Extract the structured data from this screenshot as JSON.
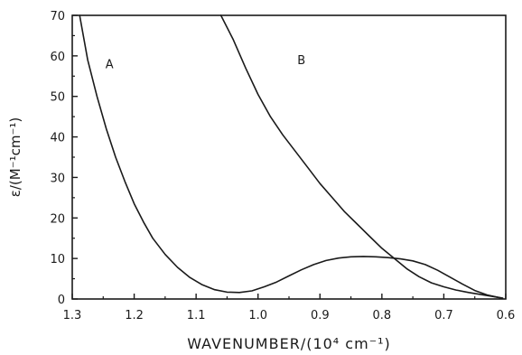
{
  "chart_data": {
    "type": "line",
    "xlabel": "WAVENUMBER/(10⁴ cm⁻¹)",
    "ylabel": "ε/(M⁻¹cm⁻¹)",
    "xlim": [
      1.3,
      0.6
    ],
    "ylim": [
      0,
      70
    ],
    "x_reversed": true,
    "x_ticks": [
      "1.3",
      "1.2",
      "1.1",
      "1.0",
      "0.9",
      "0.8",
      "0.7",
      "0.6"
    ],
    "y_ticks": [
      "0",
      "10",
      "20",
      "30",
      "40",
      "50",
      "60",
      "70"
    ],
    "grid": false,
    "series": [
      {
        "name": "A",
        "x": [
          1.288,
          1.275,
          1.26,
          1.245,
          1.23,
          1.215,
          1.2,
          1.185,
          1.17,
          1.15,
          1.13,
          1.11,
          1.09,
          1.07,
          1.05,
          1.03,
          1.01,
          0.99,
          0.97,
          0.95,
          0.93,
          0.91,
          0.89,
          0.87,
          0.85,
          0.83,
          0.81,
          0.79,
          0.77,
          0.75,
          0.73,
          0.71,
          0.69,
          0.67,
          0.65,
          0.63,
          0.615,
          0.605
        ],
        "y": [
          70,
          59,
          50,
          42,
          35,
          29,
          23.5,
          19,
          15,
          11,
          7.8,
          5.3,
          3.5,
          2.3,
          1.7,
          1.6,
          2.0,
          3.0,
          4.2,
          5.7,
          7.2,
          8.5,
          9.5,
          10.1,
          10.4,
          10.5,
          10.4,
          10.2,
          9.9,
          9.4,
          8.5,
          7.1,
          5.4,
          3.7,
          2.1,
          1.0,
          0.5,
          0.2
        ]
      },
      {
        "name": "B",
        "x": [
          1.06,
          1.04,
          1.02,
          1.0,
          0.98,
          0.96,
          0.94,
          0.92,
          0.9,
          0.88,
          0.86,
          0.84,
          0.82,
          0.8,
          0.78,
          0.76,
          0.74,
          0.72,
          0.7,
          0.68,
          0.66,
          0.64,
          0.62,
          0.605
        ],
        "y": [
          70,
          64,
          57,
          50.5,
          45,
          40.5,
          36.5,
          32.5,
          28.5,
          25,
          21.5,
          18.5,
          15.5,
          12.5,
          10,
          7.5,
          5.5,
          4,
          3,
          2.2,
          1.6,
          1.1,
          0.6,
          0.2
        ]
      }
    ]
  }
}
